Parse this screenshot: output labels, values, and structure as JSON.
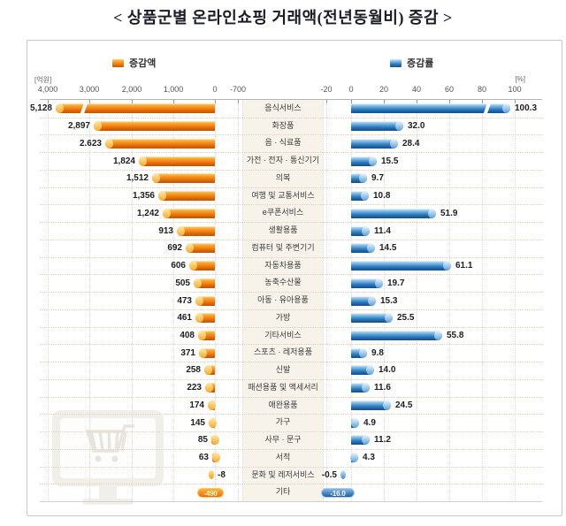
{
  "title": "< 상품군별 온라인쇼핑 거래액(전년동월비) 증감 >",
  "legend": {
    "amount_label": "증감액",
    "rate_label": "증감률"
  },
  "colors": {
    "amount_bar": "#f07d10",
    "rate_bar": "#2f7dc1",
    "category_bg": "#f7f3ea",
    "separator": "#eccdb9",
    "title_text": "#1b1b26"
  },
  "chart_data": {
    "type": "bar",
    "orientation": "horizontal-mirrored",
    "title": "< 상품군별 온라인쇼핑 거래액(전년동월비) 증감 >",
    "legend_position": "top",
    "grid": "dotted",
    "amount_axis": {
      "name": "증감액",
      "unit_label": "[억원]",
      "range": [
        -700,
        4000
      ],
      "ticks": [
        "4,000",
        "3,000",
        "2,000",
        "1,000",
        "0",
        "-700"
      ]
    },
    "rate_axis": {
      "name": "증감률",
      "unit_label": "[%]",
      "range": [
        -20,
        100
      ],
      "ticks": [
        "-20",
        "0",
        "20",
        "40",
        "60",
        "80",
        "100"
      ]
    },
    "rows": [
      {
        "category": "음식서비스",
        "amount": 5128,
        "amount_label": "5,128",
        "rate": 100.3,
        "rate_label": "100.3",
        "amount_truncated": true,
        "rate_truncated": true
      },
      {
        "category": "화장품",
        "amount": 2897,
        "amount_label": "2,897",
        "rate": 32.0,
        "rate_label": "32.0"
      },
      {
        "category": "음 · 식료품",
        "amount": 2623,
        "amount_label": "2.623",
        "rate": 28.4,
        "rate_label": "28.4"
      },
      {
        "category": "가전 · 전자 · 통신기기",
        "amount": 1824,
        "amount_label": "1,824",
        "rate": 15.5,
        "rate_label": "15.5"
      },
      {
        "category": "의복",
        "amount": 1512,
        "amount_label": "1,512",
        "rate": 9.7,
        "rate_label": "9.7"
      },
      {
        "category": "여행 및 교통서비스",
        "amount": 1356,
        "amount_label": "1,356",
        "rate": 10.8,
        "rate_label": "10.8"
      },
      {
        "category": "e쿠폰서비스",
        "amount": 1242,
        "amount_label": "1,242",
        "rate": 51.9,
        "rate_label": "51.9"
      },
      {
        "category": "생활용품",
        "amount": 913,
        "amount_label": "913",
        "rate": 11.4,
        "rate_label": "11.4"
      },
      {
        "category": "컴퓨터 및 주변기기",
        "amount": 692,
        "amount_label": "692",
        "rate": 14.5,
        "rate_label": "14.5"
      },
      {
        "category": "자동차용품",
        "amount": 606,
        "amount_label": "606",
        "rate": 61.1,
        "rate_label": "61.1"
      },
      {
        "category": "농축수산물",
        "amount": 505,
        "amount_label": "505",
        "rate": 19.7,
        "rate_label": "19.7"
      },
      {
        "category": "아동 · 유아용품",
        "amount": 473,
        "amount_label": "473",
        "rate": 15.3,
        "rate_label": "15.3"
      },
      {
        "category": "가방",
        "amount": 461,
        "amount_label": "461",
        "rate": 25.5,
        "rate_label": "25.5"
      },
      {
        "category": "기타서비스",
        "amount": 408,
        "amount_label": "408",
        "rate": 55.8,
        "rate_label": "55.8"
      },
      {
        "category": "스포츠 · 레저용품",
        "amount": 371,
        "amount_label": "371",
        "rate": 9.8,
        "rate_label": "9.8"
      },
      {
        "category": "신발",
        "amount": 258,
        "amount_label": "258",
        "rate": 14.0,
        "rate_label": "14.0"
      },
      {
        "category": "패션용품 및 액세서리",
        "amount": 223,
        "amount_label": "223",
        "rate": 11.6,
        "rate_label": "11.6"
      },
      {
        "category": "애완용품",
        "amount": 174,
        "amount_label": "174",
        "rate": 24.5,
        "rate_label": "24.5"
      },
      {
        "category": "가구",
        "amount": 145,
        "amount_label": "145",
        "rate": 4.9,
        "rate_label": "4.9"
      },
      {
        "category": "사무 · 문구",
        "amount": 85,
        "amount_label": "85",
        "rate": 11.2,
        "rate_label": "11.2"
      },
      {
        "category": "서적",
        "amount": 63,
        "amount_label": "63",
        "rate": 4.3,
        "rate_label": "4.3"
      },
      {
        "category": "문화 및 레저서비스",
        "amount": -8,
        "amount_label": "-8",
        "rate": -0.5,
        "rate_label": "-0.5",
        "negative_dot": true
      },
      {
        "category": "기타",
        "amount": -490,
        "amount_label": "-490",
        "rate": -16.0,
        "rate_label": "-16.0",
        "offscale_badge": true
      }
    ]
  }
}
